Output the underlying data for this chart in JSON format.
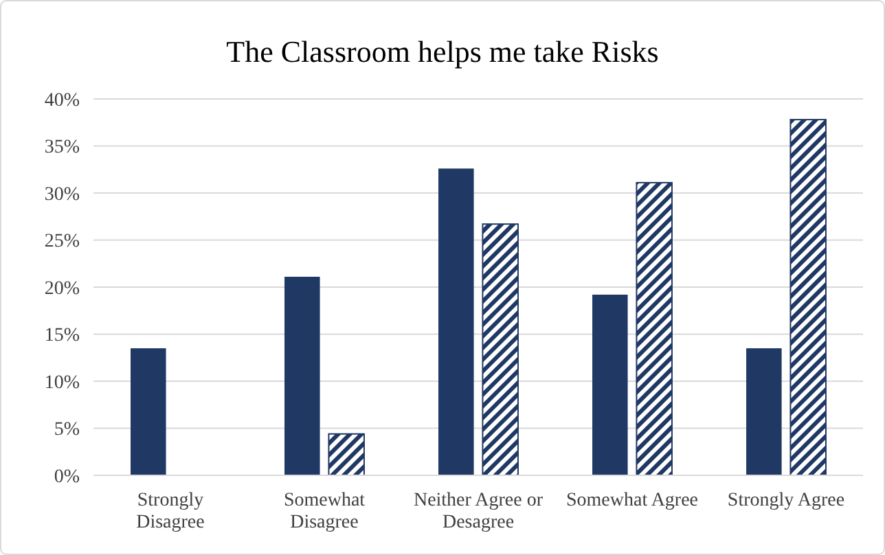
{
  "chart_data": {
    "type": "bar",
    "title": "The Classroom helps me take Risks",
    "categories": [
      "Strongly Disagree",
      "Somewhat Disagree",
      "Neither Agree or Desagree",
      "Somewhat Agree",
      "Strongly Agree"
    ],
    "series": [
      {
        "color": "#1f3864",
        "values": [
          13.5,
          21.1,
          32.6,
          19.2,
          13.5
        ]
      },
      {
        "color": "#1f3864",
        "values": [
          0,
          4.4,
          26.7,
          31.1,
          37.8
        ]
      }
    ],
    "ylim": [
      0,
      40
    ],
    "yticks": [
      {
        "value": 0,
        "label": "0%"
      },
      {
        "value": 5,
        "label": "5%"
      },
      {
        "value": 10,
        "label": "10%"
      },
      {
        "value": 15,
        "label": "15%"
      },
      {
        "value": 20,
        "label": "20%"
      },
      {
        "value": 25,
        "label": "25%"
      },
      {
        "value": 30,
        "label": "30%"
      },
      {
        "value": 35,
        "label": "35%"
      },
      {
        "value": 40,
        "label": "40%"
      }
    ],
    "grid": "y"
  }
}
